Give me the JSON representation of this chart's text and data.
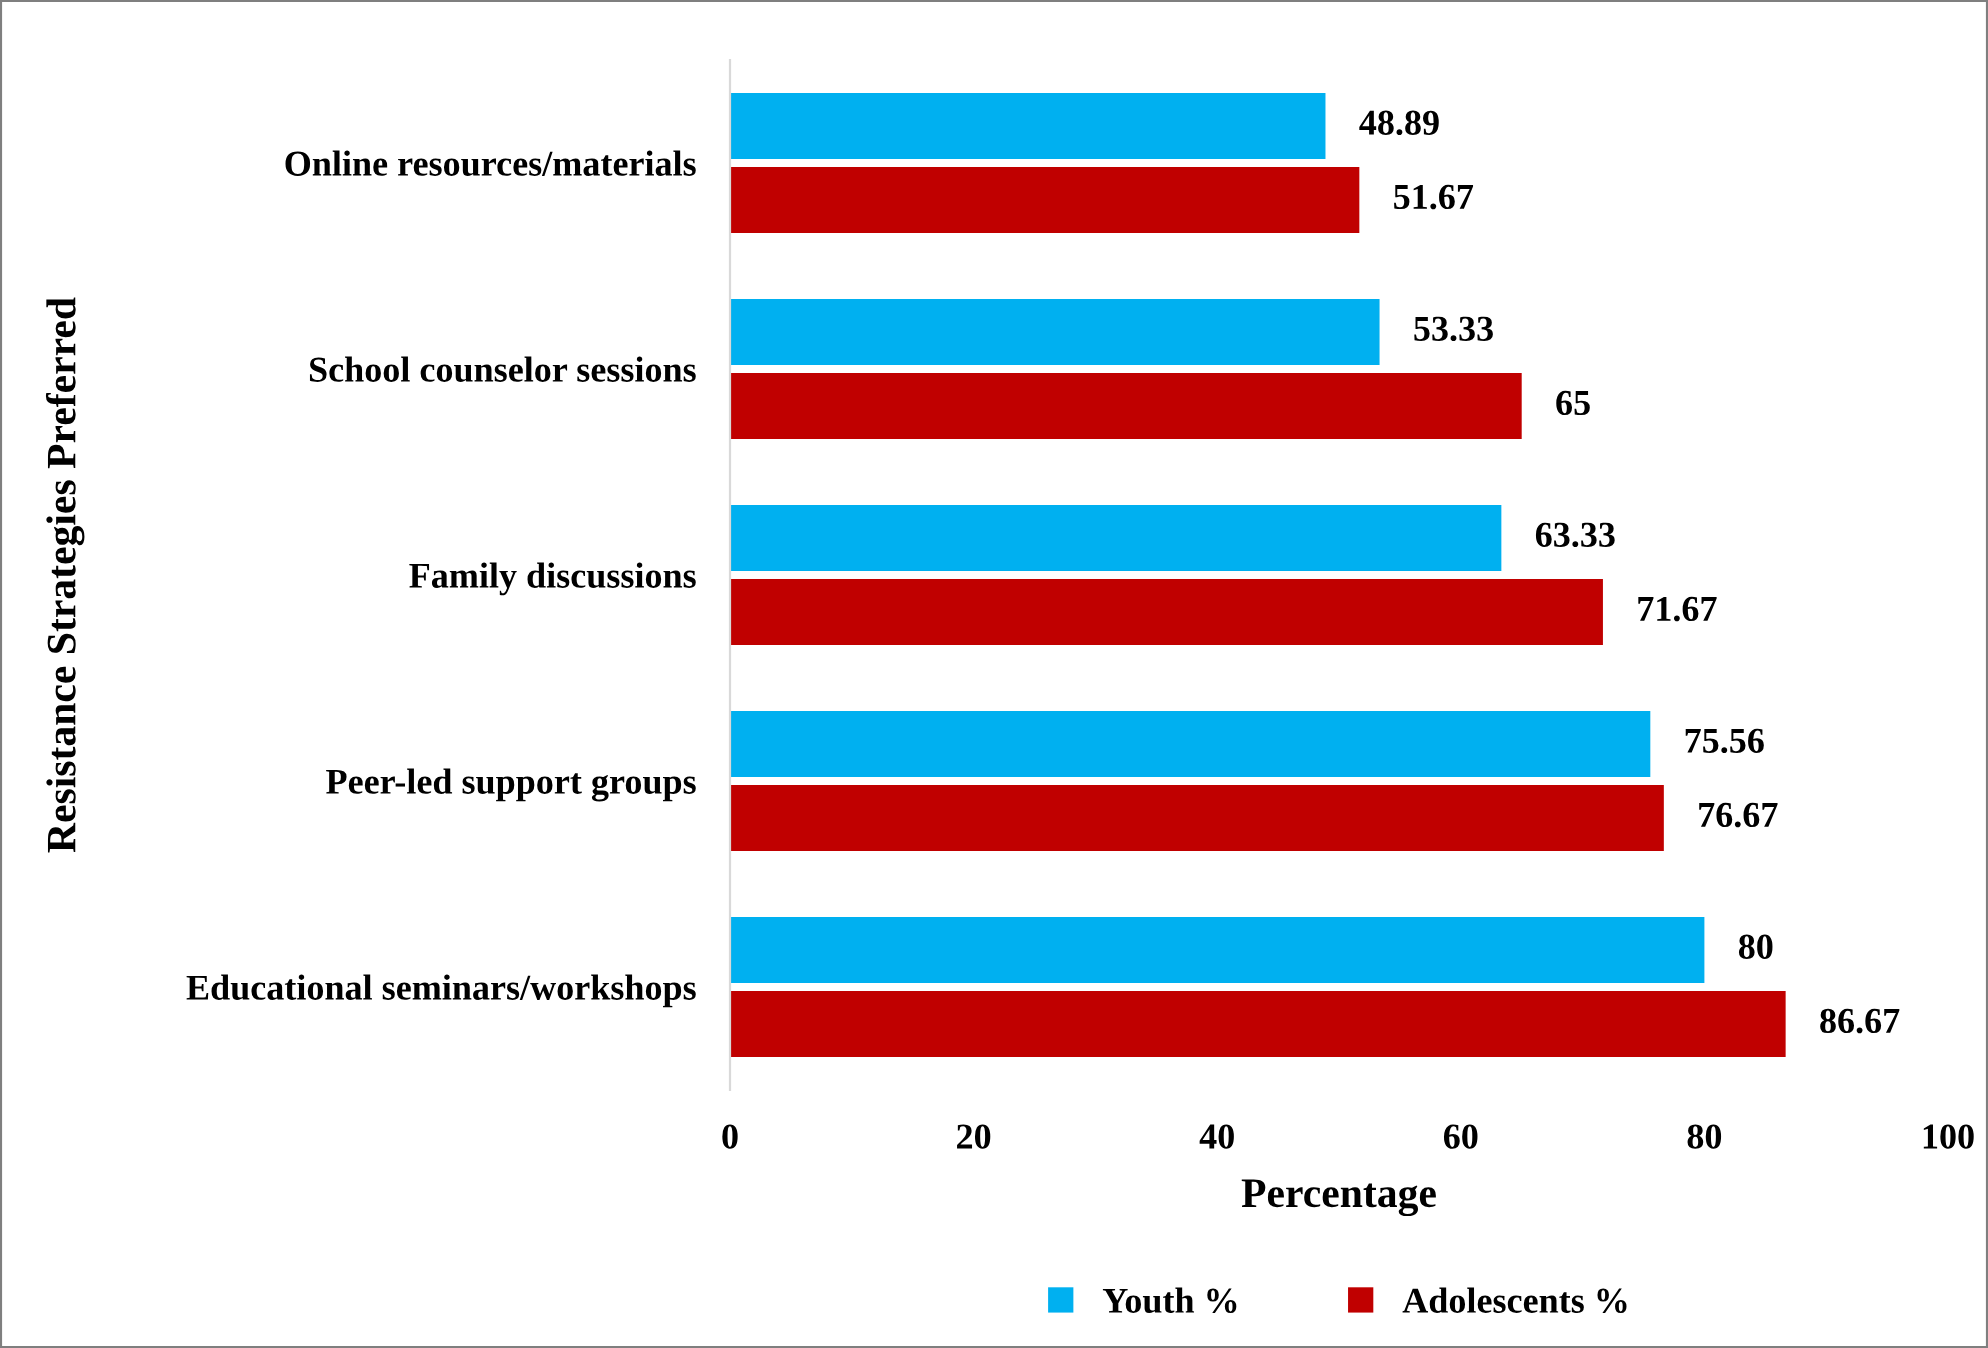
{
  "chart_data": {
    "type": "bar",
    "orientation": "horizontal",
    "xlabel": "Percentage",
    "ylabel": "Resistance Strategies Preferred",
    "categories": [
      "Online resources/materials",
      "School counselor sessions",
      "Family discussions",
      "Peer-led support groups",
      "Educational seminars/workshops"
    ],
    "series": [
      {
        "name": "Youth %",
        "color": "#00b0f0",
        "values": [
          48.89,
          53.33,
          63.33,
          75.56,
          80
        ]
      },
      {
        "name": "Adolescents %",
        "color": "#c00000",
        "values": [
          51.67,
          65,
          71.67,
          76.67,
          86.67
        ]
      }
    ],
    "xlim": [
      0,
      100
    ],
    "xticks": [
      0,
      20,
      40,
      60,
      80,
      100
    ],
    "data_labels": true,
    "grid": false,
    "legend": "bottom"
  }
}
